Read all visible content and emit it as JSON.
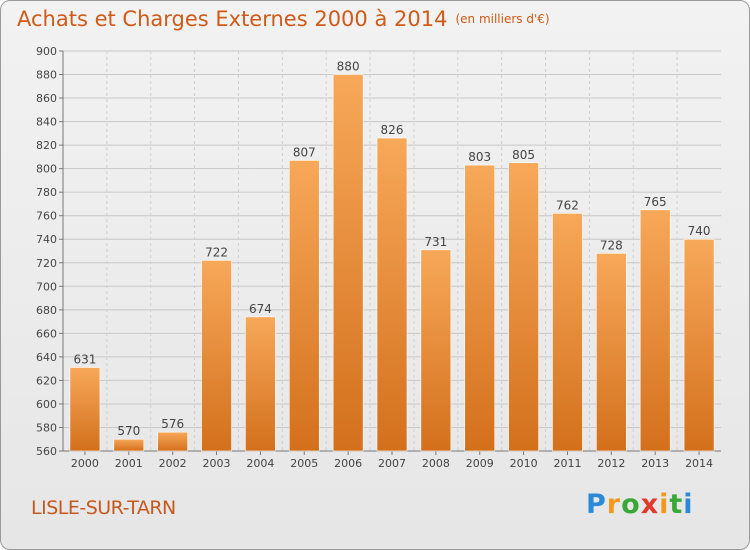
{
  "title": "Achats et Charges Externes 2000 à 2014",
  "unit": "(en milliers d'€)",
  "location": "LISLE-SUR-TARN",
  "logo": "Proxiti",
  "colors": {
    "bar_top": "#f7a859",
    "bar_bottom": "#d3701c",
    "title": "#d05a17",
    "grid": "#c8c8c8"
  },
  "chart_data": {
    "type": "bar",
    "title": "Achats et Charges Externes 2000 à 2014",
    "subtitle": "(en milliers d'€)",
    "categories": [
      "2000",
      "2001",
      "2002",
      "2003",
      "2004",
      "2005",
      "2006",
      "2007",
      "2008",
      "2009",
      "2010",
      "2011",
      "2012",
      "2013",
      "2014"
    ],
    "values": [
      631,
      570,
      576,
      722,
      674,
      807,
      880,
      826,
      731,
      803,
      805,
      762,
      728,
      765,
      740
    ],
    "ylim": [
      560,
      900
    ],
    "yticks": [
      560,
      580,
      600,
      620,
      640,
      660,
      680,
      700,
      720,
      740,
      760,
      780,
      800,
      820,
      840,
      860,
      880,
      900
    ],
    "grid": true,
    "data_labels": true
  }
}
